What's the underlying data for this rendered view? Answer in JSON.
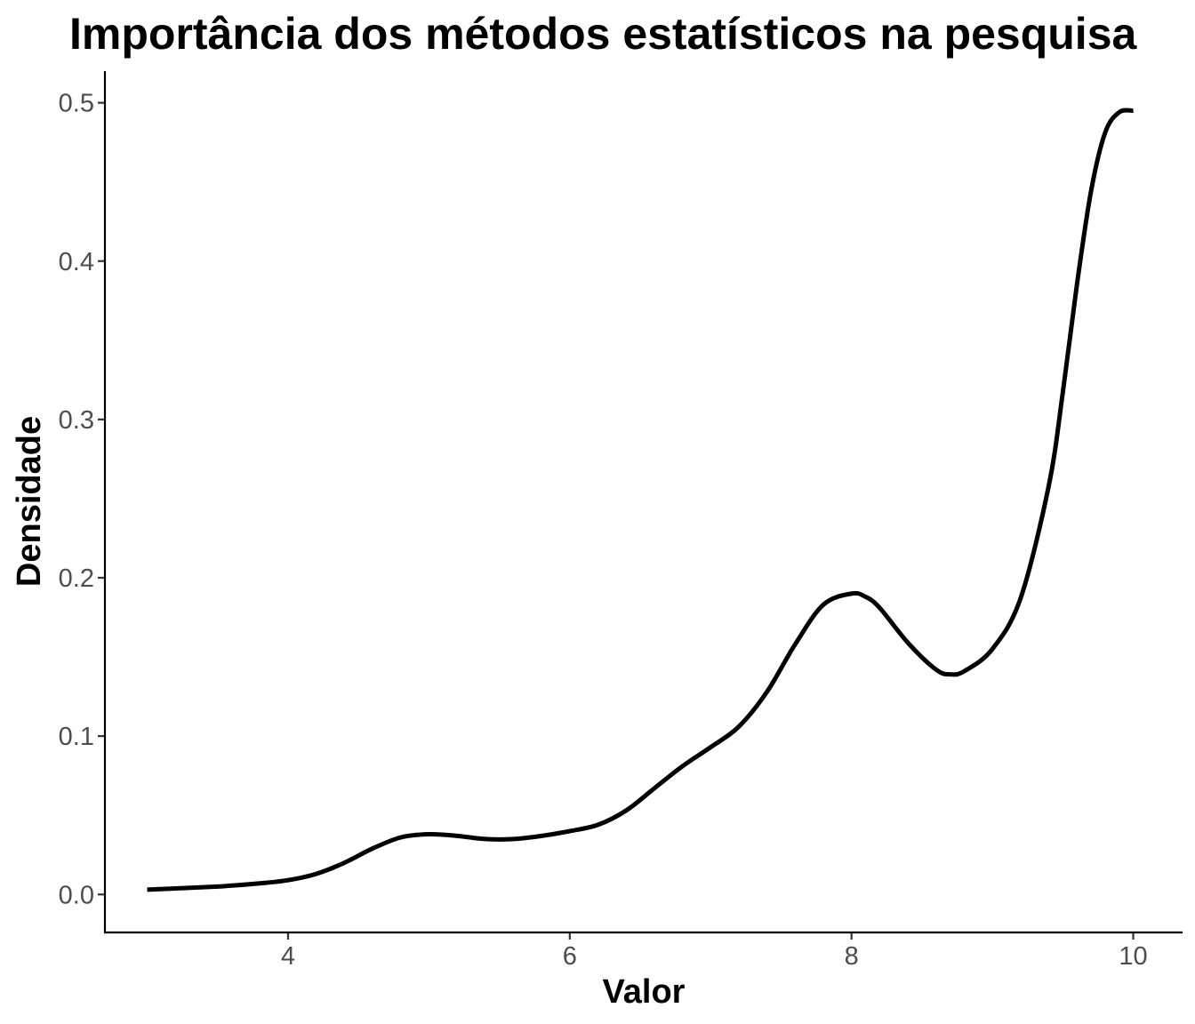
{
  "chart_data": {
    "type": "line",
    "title": "Importância dos métodos estatísticos na pesquisa",
    "xlabel": "Valor",
    "ylabel": "Densidade",
    "xlim": [
      2.7,
      10.35
    ],
    "ylim": [
      -0.024,
      0.52
    ],
    "x_ticks": [
      4,
      6,
      8,
      10
    ],
    "x_tick_labels": [
      "4",
      "6",
      "8",
      "10"
    ],
    "y_ticks": [
      0.0,
      0.1,
      0.2,
      0.3,
      0.4,
      0.5
    ],
    "y_tick_labels": [
      "0.0",
      "0.1",
      "0.2",
      "0.3",
      "0.4",
      "0.5"
    ],
    "grid": false,
    "legend": "none",
    "series": [
      {
        "color": "#000000",
        "x": [
          3.0,
          3.5,
          3.8,
          4.0,
          4.2,
          4.4,
          4.6,
          4.8,
          5.0,
          5.2,
          5.4,
          5.6,
          5.8,
          6.0,
          6.2,
          6.4,
          6.6,
          6.8,
          7.0,
          7.2,
          7.4,
          7.6,
          7.8,
          8.0,
          8.1,
          8.2,
          8.4,
          8.6,
          8.7,
          8.8,
          9.0,
          9.2,
          9.4,
          9.5,
          9.6,
          9.7,
          9.8,
          9.9,
          10.0
        ],
        "y": [
          0.003,
          0.005,
          0.007,
          0.009,
          0.013,
          0.02,
          0.029,
          0.036,
          0.038,
          0.037,
          0.035,
          0.035,
          0.037,
          0.04,
          0.044,
          0.053,
          0.067,
          0.081,
          0.093,
          0.106,
          0.128,
          0.158,
          0.183,
          0.19,
          0.188,
          0.181,
          0.159,
          0.142,
          0.139,
          0.141,
          0.155,
          0.187,
          0.258,
          0.317,
          0.385,
          0.444,
          0.481,
          0.494,
          0.495
        ]
      }
    ]
  }
}
